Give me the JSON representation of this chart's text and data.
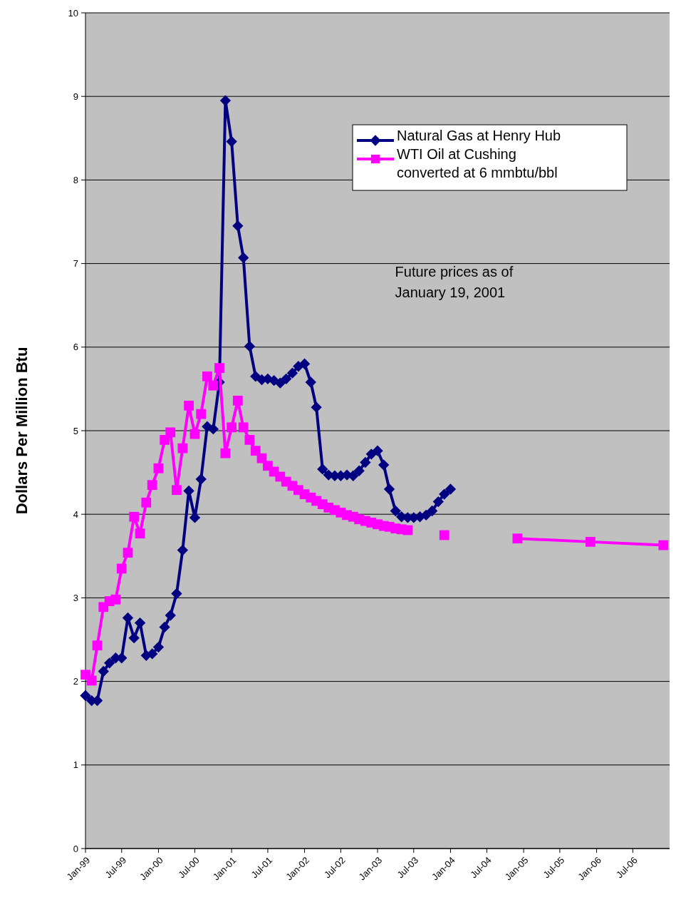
{
  "chart_data": {
    "type": "line",
    "ylabel": "Dollars Per Million Btu",
    "ylim": [
      0,
      10
    ],
    "yticks": [
      0,
      1,
      2,
      3,
      4,
      5,
      6,
      7,
      8,
      9,
      10
    ],
    "grid": "y",
    "legend": "top right",
    "xlim": [
      "1999-01",
      "2007-01"
    ],
    "xticks": [
      {
        "value": "1999-01",
        "label": "Jan-99"
      },
      {
        "value": "1999-07",
        "label": "Jul-99"
      },
      {
        "value": "2000-01",
        "label": "Jan-00"
      },
      {
        "value": "2000-07",
        "label": "Jul-00"
      },
      {
        "value": "2001-01",
        "label": "Jan-01"
      },
      {
        "value": "2001-07",
        "label": "Jul-01"
      },
      {
        "value": "2002-01",
        "label": "Jan-02"
      },
      {
        "value": "2002-07",
        "label": "Jul-02"
      },
      {
        "value": "2003-01",
        "label": "Jan-03"
      },
      {
        "value": "2003-07",
        "label": "Jul-03"
      },
      {
        "value": "2004-01",
        "label": "Jan-04"
      },
      {
        "value": "2004-07",
        "label": "Jul-04"
      },
      {
        "value": "2005-01",
        "label": "Jan-05"
      },
      {
        "value": "2005-07",
        "label": "Jul-05"
      },
      {
        "value": "2006-01",
        "label": "Jan-06"
      },
      {
        "value": "2006-07",
        "label": "Jul-06"
      }
    ],
    "annotations": [
      "Future prices as of January 19, 2001"
    ],
    "series": [
      {
        "name": "Natural Gas at Henry Hub",
        "color": "#000080",
        "marker": "diamond",
        "x": [
          "1999-01",
          "1999-02",
          "1999-03",
          "1999-04",
          "1999-05",
          "1999-06",
          "1999-07",
          "1999-08",
          "1999-09",
          "1999-10",
          "1999-11",
          "1999-12",
          "2000-01",
          "2000-02",
          "2000-03",
          "2000-04",
          "2000-05",
          "2000-06",
          "2000-07",
          "2000-08",
          "2000-09",
          "2000-10",
          "2000-11",
          "2000-12",
          "2001-01",
          "2001-02",
          "2001-03",
          "2001-04",
          "2001-05",
          "2001-06",
          "2001-07",
          "2001-08",
          "2001-09",
          "2001-10",
          "2001-11",
          "2001-12",
          "2002-01",
          "2002-02",
          "2002-03",
          "2002-04",
          "2002-05",
          "2002-06",
          "2002-07",
          "2002-08",
          "2002-09",
          "2002-10",
          "2002-11",
          "2002-12",
          "2003-01",
          "2003-02",
          "2003-03",
          "2003-04",
          "2003-05",
          "2003-06",
          "2003-07",
          "2003-08",
          "2003-09",
          "2003-10",
          "2003-11",
          "2003-12",
          "2004-01"
        ],
        "values": [
          1.83,
          1.77,
          1.77,
          2.12,
          2.22,
          2.28,
          2.28,
          2.76,
          2.52,
          2.7,
          2.31,
          2.33,
          2.41,
          2.65,
          2.79,
          3.05,
          3.57,
          4.28,
          3.96,
          4.42,
          5.05,
          5.02,
          5.58,
          8.95,
          8.46,
          7.45,
          7.07,
          6.01,
          5.65,
          5.61,
          5.62,
          5.6,
          5.57,
          5.62,
          5.69,
          5.77,
          5.8,
          5.58,
          5.28,
          4.54,
          4.47,
          4.46,
          4.46,
          4.47,
          4.46,
          4.52,
          4.62,
          4.72,
          4.76,
          4.59,
          4.3,
          4.04,
          3.97,
          3.96,
          3.96,
          3.97,
          3.99,
          4.04,
          4.15,
          4.24,
          4.3
        ]
      },
      {
        "name": "WTI Oil at Cushing converted at 6 mmbtu/bbl",
        "color": "#ff00ff",
        "marker": "square",
        "x": [
          "1999-01",
          "1999-02",
          "1999-03",
          "1999-04",
          "1999-05",
          "1999-06",
          "1999-07",
          "1999-08",
          "1999-09",
          "1999-10",
          "1999-11",
          "1999-12",
          "2000-01",
          "2000-02",
          "2000-03",
          "2000-04",
          "2000-05",
          "2000-06",
          "2000-07",
          "2000-08",
          "2000-09",
          "2000-10",
          "2000-11",
          "2000-12",
          "2001-01",
          "2001-02",
          "2001-03",
          "2001-04",
          "2001-05",
          "2001-06",
          "2001-07",
          "2001-08",
          "2001-09",
          "2001-10",
          "2001-11",
          "2001-12",
          "2002-01",
          "2002-02",
          "2002-03",
          "2002-04",
          "2002-05",
          "2002-06",
          "2002-07",
          "2002-08",
          "2002-09",
          "2002-10",
          "2002-11",
          "2002-12",
          "2003-01",
          "2003-02",
          "2003-03",
          "2003-04",
          "2003-05",
          "2003-06",
          "2003-09",
          "2003-12",
          "2004-06",
          "2004-12",
          "2005-12",
          "2006-12"
        ],
        "values": [
          2.08,
          2.01,
          2.43,
          2.89,
          2.96,
          2.98,
          3.35,
          3.54,
          3.97,
          3.77,
          4.14,
          4.35,
          4.55,
          4.89,
          4.98,
          4.29,
          4.79,
          5.3,
          4.96,
          5.2,
          5.65,
          5.54,
          5.75,
          4.73,
          5.04,
          5.36,
          5.04,
          4.89,
          4.76,
          4.67,
          4.58,
          4.51,
          4.45,
          4.39,
          4.34,
          4.29,
          4.24,
          4.2,
          4.16,
          4.12,
          4.08,
          4.05,
          4.02,
          3.99,
          3.97,
          3.94,
          3.92,
          3.9,
          3.88,
          3.86,
          3.85,
          3.83,
          3.82,
          3.81,
          null,
          3.75,
          null,
          3.71,
          3.67,
          3.63
        ]
      }
    ]
  }
}
